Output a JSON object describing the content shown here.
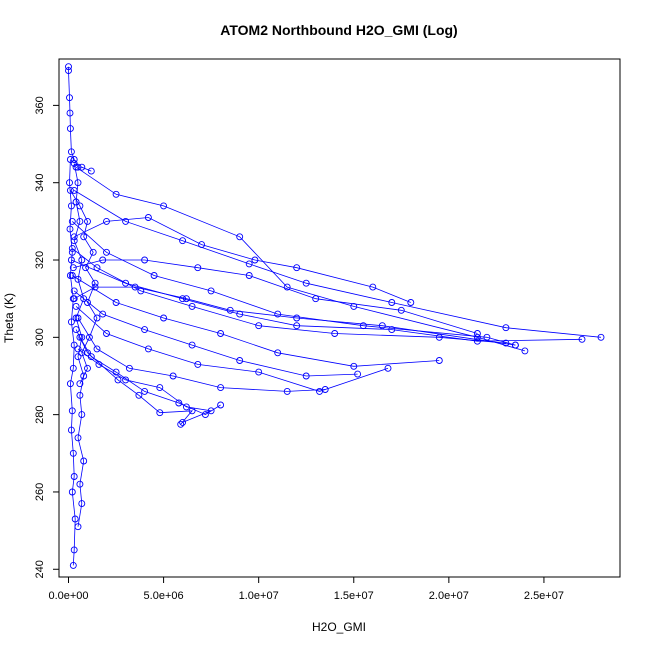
{
  "chart_data": {
    "type": "scatter",
    "title": "ATOM2 Northbound H2O_GMI (Log)",
    "xlabel": "H2O_GMI",
    "ylabel": "Theta (K)",
    "xlim": [
      -500000,
      29000000
    ],
    "ylim": [
      238,
      372
    ],
    "x_ticks": [
      0,
      5000000,
      10000000,
      15000000,
      20000000,
      25000000
    ],
    "x_tick_labels": [
      "0.0e+00",
      "5.0e+06",
      "1.0e+07",
      "1.5e+07",
      "2.0e+07",
      "2.5e+07"
    ],
    "y_ticks": [
      240,
      260,
      280,
      300,
      320,
      340,
      360
    ],
    "y_tick_labels": [
      "240",
      "260",
      "280",
      "300",
      "320",
      "340",
      "360"
    ],
    "grid": false,
    "legend": "none",
    "color": "#0000ff",
    "series": [
      {
        "values": [
          [
            0,
            370
          ],
          [
            0,
            369
          ],
          [
            50000,
            362
          ],
          [
            80000,
            358
          ],
          [
            100000,
            354
          ],
          [
            150000,
            348
          ],
          [
            300000,
            346
          ],
          [
            500000,
            344
          ],
          [
            700000,
            344
          ],
          [
            1200000,
            343
          ]
        ]
      },
      {
        "values": [
          [
            400000,
            344
          ],
          [
            2500000,
            337
          ],
          [
            5000000,
            334
          ],
          [
            9000000,
            326
          ],
          [
            11500000,
            313
          ],
          [
            15000000,
            308
          ],
          [
            21500000,
            300
          ],
          [
            24000000,
            296.5
          ]
        ]
      },
      {
        "values": [
          [
            300000,
            338
          ],
          [
            3000000,
            330
          ],
          [
            6000000,
            325
          ],
          [
            9500000,
            319
          ],
          [
            12500000,
            314
          ],
          [
            17000000,
            309
          ],
          [
            23000000,
            302.5
          ],
          [
            28000000,
            300
          ]
        ]
      },
      {
        "values": [
          [
            200000,
            330
          ],
          [
            2000000,
            322
          ],
          [
            4500000,
            316
          ],
          [
            7500000,
            312
          ],
          [
            11000000,
            306
          ],
          [
            15500000,
            303
          ],
          [
            22000000,
            300
          ],
          [
            23500000,
            298
          ]
        ]
      },
      {
        "values": [
          [
            200000,
            323
          ],
          [
            1500000,
            318
          ],
          [
            3800000,
            312
          ],
          [
            6500000,
            308
          ],
          [
            10000000,
            303
          ],
          [
            14000000,
            301
          ],
          [
            19500000,
            300
          ],
          [
            23000000,
            298.5
          ]
        ]
      },
      {
        "values": [
          [
            150000,
            320
          ],
          [
            3000000,
            314
          ],
          [
            6000000,
            310
          ],
          [
            9000000,
            306
          ],
          [
            12000000,
            303
          ],
          [
            17000000,
            302
          ],
          [
            21500000,
            299
          ],
          [
            27000000,
            299.5
          ]
        ]
      },
      {
        "values": [
          [
            200000,
            316
          ],
          [
            2500000,
            309
          ],
          [
            5000000,
            305
          ],
          [
            8000000,
            301
          ],
          [
            11000000,
            296
          ],
          [
            15000000,
            292.5
          ],
          [
            19500000,
            294
          ]
        ]
      },
      {
        "values": [
          [
            300000,
            312
          ],
          [
            1800000,
            306
          ],
          [
            4000000,
            302
          ],
          [
            6500000,
            298
          ],
          [
            9000000,
            294
          ],
          [
            12500000,
            290
          ],
          [
            15200000,
            290.5
          ]
        ]
      },
      {
        "values": [
          [
            400000,
            308
          ],
          [
            2000000,
            301
          ],
          [
            4200000,
            297
          ],
          [
            6800000,
            293
          ],
          [
            10000000,
            291
          ],
          [
            13200000,
            286
          ],
          [
            16800000,
            292
          ]
        ]
      },
      {
        "values": [
          [
            500000,
            305
          ],
          [
            1500000,
            297
          ],
          [
            3200000,
            292
          ],
          [
            5500000,
            290
          ],
          [
            8000000,
            287
          ],
          [
            11500000,
            286
          ],
          [
            13500000,
            286.5
          ]
        ]
      },
      {
        "values": [
          [
            600000,
            300
          ],
          [
            1200000,
            295
          ],
          [
            2500000,
            291
          ],
          [
            4000000,
            286
          ],
          [
            5800000,
            283
          ],
          [
            7200000,
            280
          ],
          [
            8000000,
            282.5
          ]
        ]
      },
      {
        "values": [
          [
            500000,
            297
          ],
          [
            1600000,
            293
          ],
          [
            3000000,
            289
          ],
          [
            4800000,
            287
          ],
          [
            6200000,
            282
          ],
          [
            7500000,
            281
          ],
          [
            6000000,
            278
          ]
        ]
      },
      {
        "values": [
          [
            400000,
            302
          ],
          [
            1000000,
            296
          ],
          [
            2600000,
            289
          ],
          [
            3700000,
            285
          ],
          [
            4800000,
            280.5
          ],
          [
            6500000,
            281
          ],
          [
            5900000,
            277.5
          ]
        ]
      },
      {
        "values": [
          [
            300000,
            326
          ],
          [
            2000000,
            330
          ],
          [
            4200000,
            331
          ],
          [
            7000000,
            324
          ],
          [
            9800000,
            320
          ],
          [
            12000000,
            318
          ],
          [
            16000000,
            313
          ],
          [
            18000000,
            309
          ]
        ]
      },
      {
        "values": [
          [
            250000,
            318
          ],
          [
            1800000,
            320
          ],
          [
            4000000,
            320
          ],
          [
            6800000,
            318
          ],
          [
            9500000,
            316
          ],
          [
            13000000,
            310
          ],
          [
            17500000,
            307
          ],
          [
            21500000,
            301
          ]
        ]
      },
      {
        "values": [
          [
            300000,
            310
          ],
          [
            1400000,
            313
          ],
          [
            3500000,
            313
          ],
          [
            6200000,
            310
          ],
          [
            8500000,
            307
          ],
          [
            12000000,
            305
          ],
          [
            16500000,
            303
          ],
          [
            23500000,
            298
          ]
        ]
      },
      {
        "values": [
          [
            100000,
            346
          ],
          [
            50000,
            340
          ],
          [
            150000,
            334
          ],
          [
            80000,
            328
          ],
          [
            200000,
            322
          ],
          [
            100000,
            316
          ],
          [
            250000,
            310
          ],
          [
            150000,
            304
          ],
          [
            300000,
            298
          ],
          [
            250000,
            292
          ],
          [
            100000,
            288
          ],
          [
            200000,
            281
          ],
          [
            150000,
            276
          ],
          [
            250000,
            270
          ],
          [
            300000,
            264
          ],
          [
            200000,
            260
          ],
          [
            350000,
            253
          ],
          [
            300000,
            245
          ],
          [
            250000,
            241
          ]
        ]
      },
      {
        "values": [
          [
            300000,
            345
          ],
          [
            500000,
            340
          ],
          [
            400000,
            335
          ],
          [
            600000,
            330
          ],
          [
            300000,
            325
          ],
          [
            700000,
            320
          ],
          [
            500000,
            315
          ],
          [
            800000,
            310
          ],
          [
            400000,
            305
          ],
          [
            700000,
            300
          ],
          [
            500000,
            295
          ],
          [
            800000,
            290
          ],
          [
            600000,
            285
          ],
          [
            700000,
            280
          ],
          [
            500000,
            274
          ],
          [
            800000,
            268
          ],
          [
            600000,
            262
          ],
          [
            700000,
            257
          ],
          [
            500000,
            251
          ]
        ]
      },
      {
        "values": [
          [
            100000,
            338
          ],
          [
            600000,
            334
          ],
          [
            1000000,
            330
          ],
          [
            800000,
            326
          ],
          [
            1300000,
            322
          ],
          [
            900000,
            318
          ],
          [
            1400000,
            314
          ],
          [
            1000000,
            309
          ],
          [
            1500000,
            305
          ],
          [
            1100000,
            300
          ],
          [
            700000,
            296
          ],
          [
            1000000,
            292
          ],
          [
            600000,
            288
          ]
        ]
      }
    ]
  }
}
